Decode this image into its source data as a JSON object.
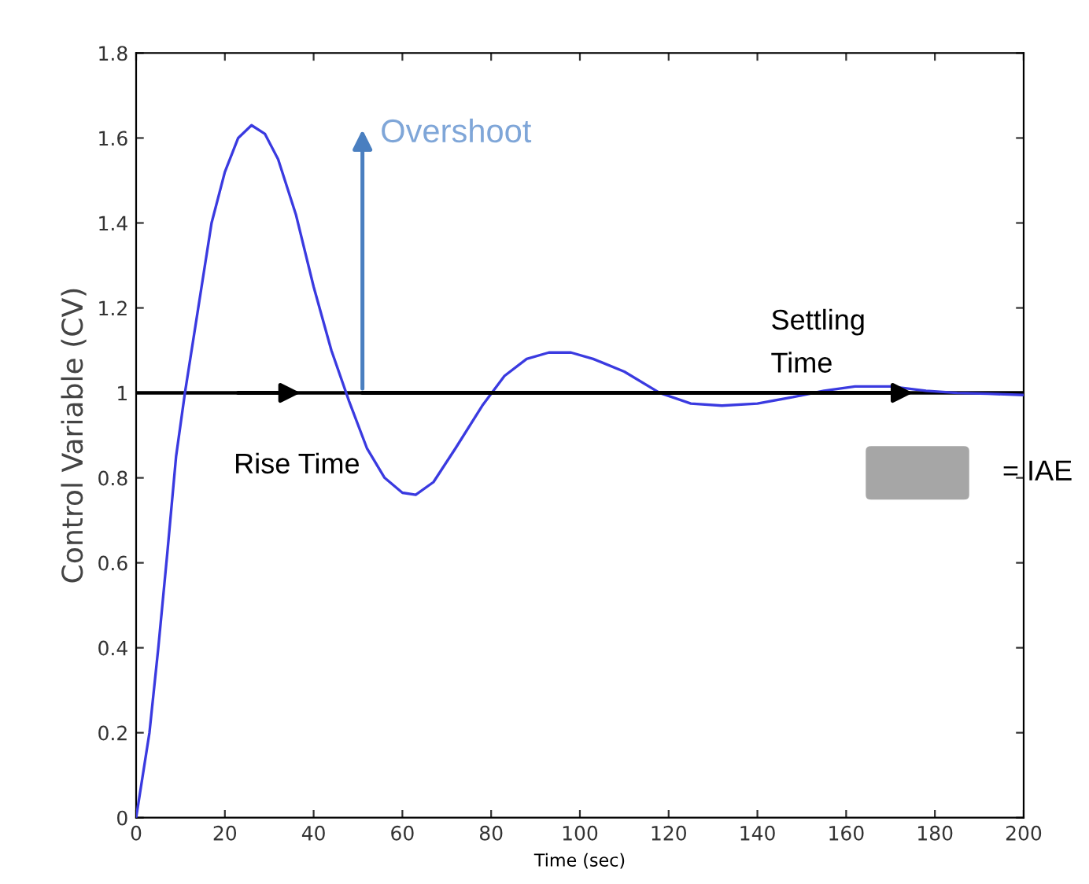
{
  "chart_data": {
    "type": "line",
    "xlabel": "Time (sec)",
    "ylabel": "Control Variable (CV)",
    "xlim": [
      0,
      200
    ],
    "xticks": [
      0,
      20,
      40,
      60,
      80,
      100,
      120,
      140,
      160,
      180,
      200
    ],
    "ylim": [
      0,
      1.8
    ],
    "yticks": [
      0,
      0.2,
      0.4,
      0.6,
      0.8,
      1,
      1.2,
      1.4,
      1.6,
      1.8
    ],
    "grid": false,
    "legend": false,
    "series": [
      {
        "color": "#3a3ae0",
        "x": [
          0,
          3,
          5,
          7,
          9,
          11,
          14,
          17,
          20,
          23,
          26,
          29,
          32,
          36,
          40,
          44,
          48,
          52,
          56,
          60,
          63,
          67,
          72,
          78,
          83,
          88,
          93,
          98,
          103,
          110,
          118,
          125,
          132,
          140,
          148,
          155,
          162,
          170,
          178,
          185,
          192,
          200
        ],
        "values": [
          0,
          0.2,
          0.4,
          0.62,
          0.85,
          1.0,
          1.2,
          1.4,
          1.52,
          1.6,
          1.63,
          1.61,
          1.55,
          1.42,
          1.25,
          1.1,
          0.98,
          0.87,
          0.8,
          0.765,
          0.76,
          0.79,
          0.87,
          0.97,
          1.04,
          1.08,
          1.095,
          1.095,
          1.08,
          1.05,
          1.0,
          0.975,
          0.97,
          0.975,
          0.99,
          1.005,
          1.015,
          1.015,
          1.005,
          1.0,
          0.998,
          0.995
        ]
      }
    ],
    "ref_lines": [
      {
        "axis": "y",
        "value": 1,
        "color": "#000000",
        "line_style": "solid"
      }
    ],
    "annotations": [
      {
        "text": "Overshoot",
        "x": 51,
        "y": 1
      },
      "Rise Time",
      "Settling Time",
      "= IAE"
    ]
  }
}
